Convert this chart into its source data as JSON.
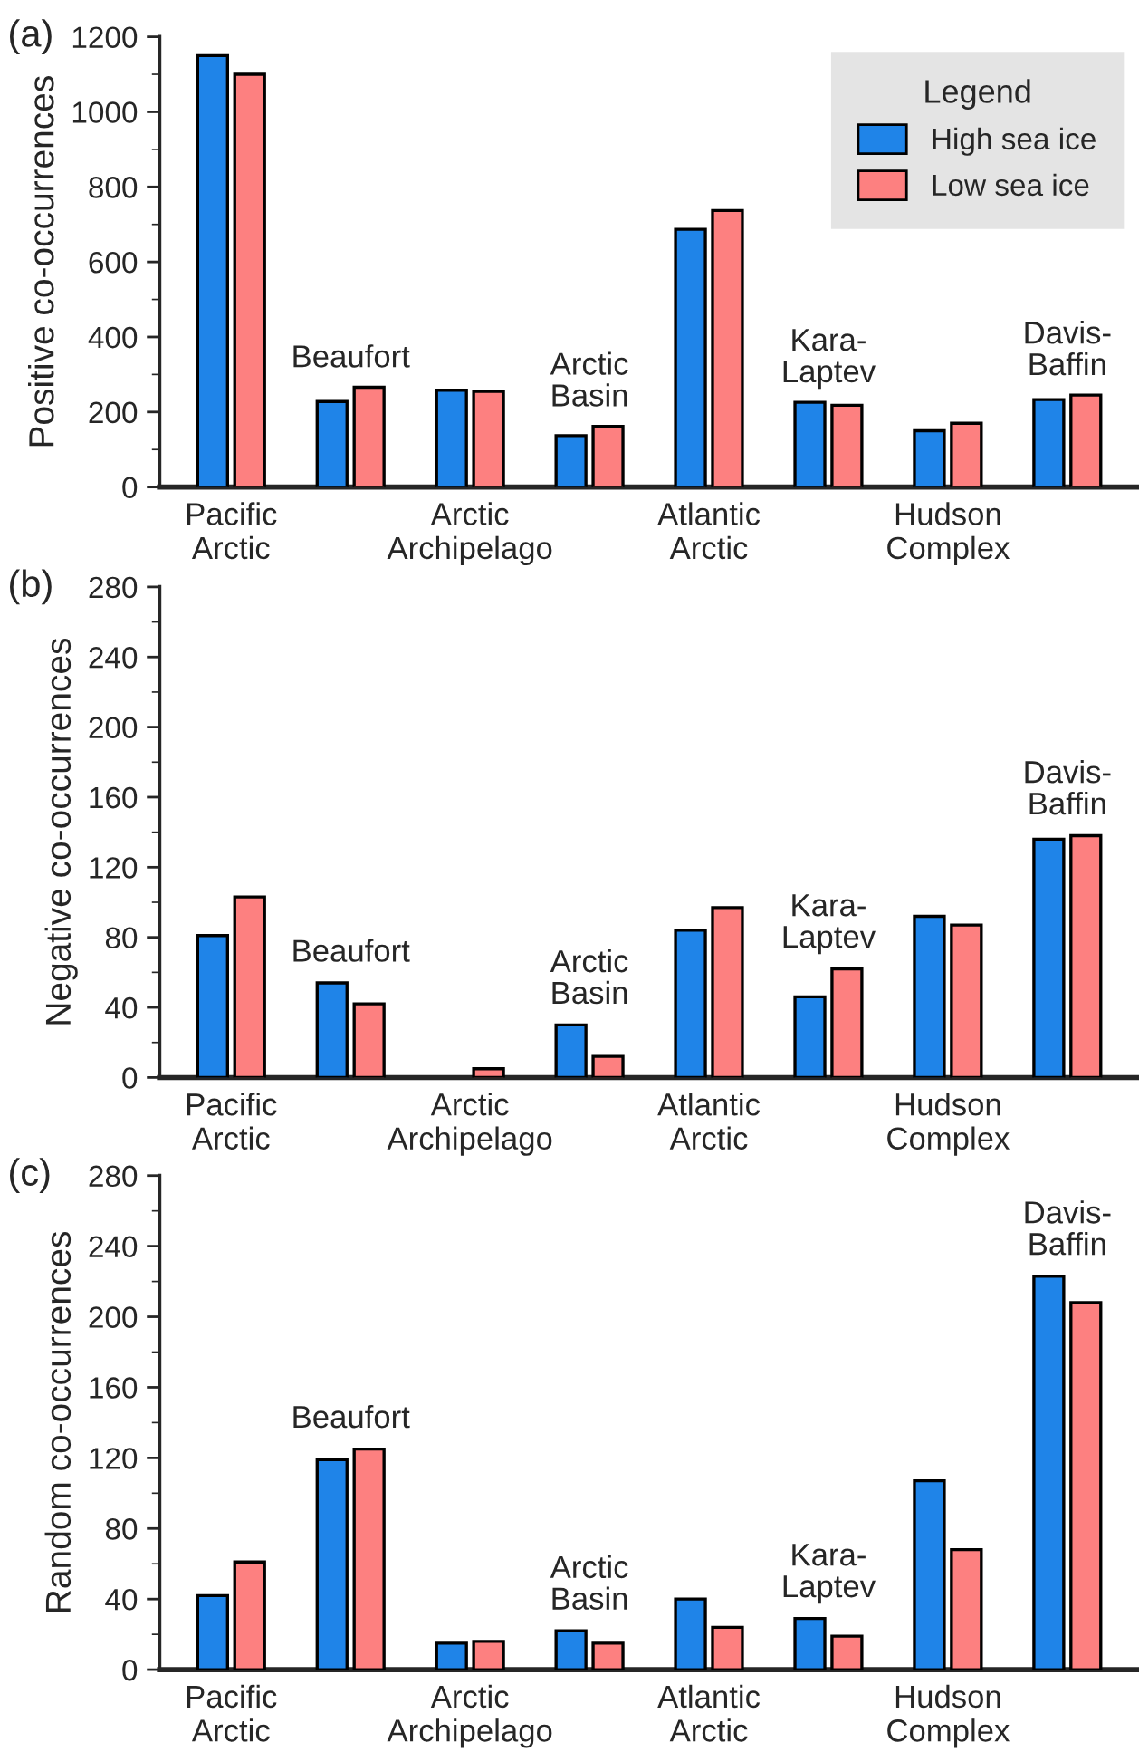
{
  "chart_data": [
    {
      "type": "bar",
      "title": "(a)",
      "ylabel": "Positive co-occurrences",
      "categories": [
        "Pacific\nArctic",
        "Beaufort",
        "Arctic\nArchipelago",
        "Arctic\nBasin",
        "Atlantic\nArctic",
        "Kara-\nLaptev",
        "Hudson\nComplex",
        "Davis-\nBaffin"
      ],
      "series": [
        {
          "name": "High sea ice",
          "color": "#1f84e8",
          "values": [
            1150,
            228,
            258,
            137,
            687,
            226,
            150,
            233
          ]
        },
        {
          "name": "Low sea ice",
          "color": "#fd8080",
          "values": [
            1100,
            266,
            255,
            162,
            737,
            218,
            170,
            245
          ]
        }
      ],
      "ylim": [
        0,
        1200
      ],
      "yticks": [
        0,
        200,
        400,
        600,
        800,
        1000,
        1200
      ],
      "legend": "top right",
      "legend_title": "Legend"
    },
    {
      "type": "bar",
      "title": "(b)",
      "ylabel": "Negative co-occurrences",
      "categories": [
        "Pacific\nArctic",
        "Beaufort",
        "Arctic\nArchipelago",
        "Arctic\nBasin",
        "Atlantic\nArctic",
        "Kara-\nLaptev",
        "Hudson\nComplex",
        "Davis-\nBaffin"
      ],
      "series": [
        {
          "color": "#1f84e8",
          "values": [
            81,
            54,
            null,
            30,
            84,
            46,
            92,
            136
          ]
        },
        {
          "color": "#fd8080",
          "values": [
            103,
            42,
            5,
            12,
            97,
            62,
            87,
            138
          ]
        }
      ],
      "ylim": [
        0,
        280
      ],
      "yticks": [
        0,
        40,
        80,
        120,
        160,
        200,
        240,
        280
      ]
    },
    {
      "type": "bar",
      "title": "(c)",
      "ylabel": "Random co-occurrences",
      "categories": [
        "Pacific\nArctic",
        "Beaufort",
        "Arctic\nArchipelago",
        "Arctic\nBasin",
        "Atlantic\nArctic",
        "Kara-\nLaptev",
        "Hudson\nComplex",
        "Davis-\nBaffin"
      ],
      "series": [
        {
          "color": "#1f84e8",
          "values": [
            42,
            119,
            15,
            22,
            40,
            29,
            107,
            223
          ]
        },
        {
          "color": "#fd8080",
          "values": [
            61,
            125,
            16,
            15,
            24,
            19,
            68,
            208
          ]
        }
      ],
      "ylim": [
        0,
        280
      ],
      "yticks": [
        0,
        40,
        80,
        120,
        160,
        200,
        240,
        280
      ]
    }
  ]
}
